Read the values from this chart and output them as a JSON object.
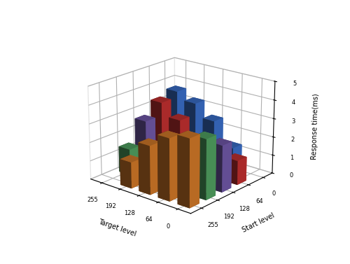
{
  "levels": [
    0,
    64,
    128,
    192,
    255
  ],
  "xlabel": "Target level",
  "ylabel": "Start level",
  "zlabel": "Response time(ms)",
  "zlim": [
    0,
    5
  ],
  "zticks": [
    0,
    1,
    2,
    3,
    4,
    5
  ],
  "response_times": [
    [
      0.05,
      1.3,
      2.5,
      3.2,
      3.6
    ],
    [
      1.3,
      0.05,
      1.4,
      2.6,
      3.3
    ],
    [
      2.5,
      1.4,
      0.05,
      1.5,
      2.6
    ],
    [
      3.2,
      2.6,
      1.5,
      0.05,
      1.4
    ],
    [
      3.6,
      3.3,
      2.6,
      1.4,
      0.05
    ]
  ],
  "bar_colors": [
    "#3A6EC8",
    "#C03030",
    "#7058A8",
    "#50A060",
    "#D07828"
  ],
  "right_colors": [
    "#6898D0",
    "#D05050",
    "#9080C0",
    "#78C090",
    "#E09848"
  ],
  "bar_width": 0.6,
  "bar_depth": 0.6,
  "background_color": "#ffffff",
  "elev": 20,
  "azim": -50,
  "fig_width": 5.0,
  "fig_height": 3.77
}
